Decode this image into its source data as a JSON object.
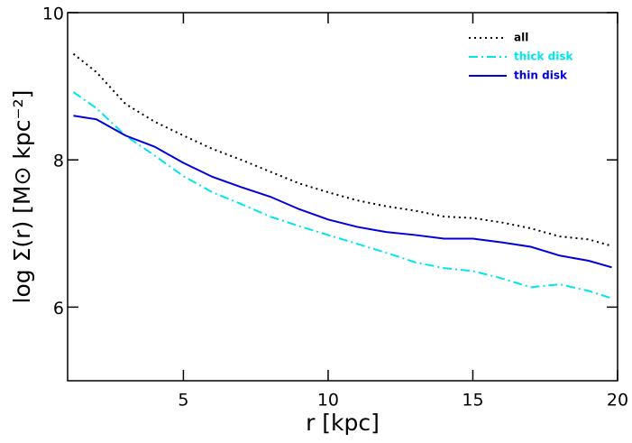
{
  "chart_data": {
    "type": "line",
    "xlabel": "r [kpc]",
    "ylabel": "log Σ(r) [M⊙ kpc⁻²]",
    "x": [
      1.2,
      2,
      3,
      4,
      5,
      6,
      7,
      8,
      9,
      10,
      11,
      12,
      13,
      14,
      15,
      16,
      17,
      18,
      19,
      19.8
    ],
    "series": [
      {
        "name": "all",
        "color": "#000000",
        "dash": "2 4",
        "values": [
          9.44,
          9.19,
          8.76,
          8.52,
          8.33,
          8.15,
          8.0,
          7.84,
          7.68,
          7.56,
          7.45,
          7.37,
          7.31,
          7.23,
          7.21,
          7.15,
          7.07,
          6.96,
          6.92,
          6.83
        ]
      },
      {
        "name": "thick disk",
        "color": "#00e5ee",
        "dash": "10 4 2 4",
        "values": [
          8.92,
          8.7,
          8.33,
          8.06,
          7.78,
          7.56,
          7.4,
          7.23,
          7.1,
          6.98,
          6.86,
          6.74,
          6.61,
          6.53,
          6.49,
          6.39,
          6.27,
          6.31,
          6.22,
          6.12
        ]
      },
      {
        "name": "thin disk",
        "color": "#0000dd",
        "dash": "none",
        "values": [
          8.6,
          8.55,
          8.33,
          8.18,
          7.96,
          7.77,
          7.63,
          7.5,
          7.33,
          7.19,
          7.09,
          7.02,
          6.98,
          6.93,
          6.93,
          6.88,
          6.82,
          6.7,
          6.63,
          6.54
        ]
      }
    ],
    "xlim": [
      1,
      20
    ],
    "ylim": [
      5,
      10
    ],
    "xticks": [
      5,
      10,
      15,
      20
    ],
    "yticks": [
      6,
      8,
      10
    ],
    "legend": "upper right"
  }
}
